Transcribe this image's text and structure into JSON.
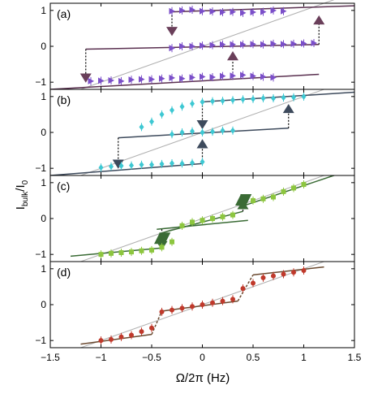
{
  "chart_data": {
    "type": "scatter",
    "xlabel": "Ω/2π (Hz)",
    "ylabel_main": "I",
    "ylabel_sub": "bulk",
    "ylabel_tail": "/I",
    "ylabel_sub2": "0",
    "xlim": [
      -1.5,
      1.5
    ],
    "xticks": [
      -1.5,
      -1,
      -0.5,
      0,
      0.5,
      1,
      1.5
    ],
    "xtick_labels": [
      "−1.5",
      "−1",
      "−0.5",
      "0",
      "0.5",
      "1",
      "1.5"
    ],
    "ylim": [
      -1.2,
      1.2
    ],
    "yticks": [
      -1,
      0,
      1
    ],
    "ytick_labels": [
      "−1",
      "0",
      "1"
    ],
    "grid": false,
    "panels": [
      {
        "label": "(a)",
        "color": "#7b4fc9",
        "line_color": "#5a3050",
        "arrow_color": "#6a3f5a",
        "marker": "tri-right",
        "reference_line": {
          "x": [
            -1.5,
            1.5
          ],
          "y": [
            -1.5,
            1.5
          ],
          "color": "#b0b0b0"
        },
        "branches": [
          {
            "x": [
              -1.5,
              1.15
            ],
            "y": [
              -1.2,
              -0.78
            ]
          },
          {
            "x": [
              -1.15,
              1.15
            ],
            "y": [
              -0.08,
              0.05
            ]
          },
          {
            "x": [
              -0.3,
              1.5
            ],
            "y": [
              0.96,
              1.13
            ]
          }
        ],
        "jumps": [
          {
            "x": -1.15,
            "from": -0.08,
            "to": -0.95,
            "dir": "down"
          },
          {
            "x": -0.3,
            "from": 0.96,
            "to": 0.35,
            "dir": "down"
          },
          {
            "x": 0.3,
            "from": -0.93,
            "to": -0.2,
            "dir": "up"
          },
          {
            "x": 1.15,
            "from": 0.05,
            "to": 0.8,
            "dir": "up"
          }
        ],
        "series": [
          {
            "x": [
              -1.1,
              -1.0,
              -0.9,
              -0.8,
              -0.7,
              -0.6,
              -0.5,
              -0.4,
              -0.3,
              -0.2,
              -0.1,
              0.0,
              0.1,
              0.2,
              0.3,
              0.4,
              0.5,
              0.6,
              0.7
            ],
            "y": [
              -0.97,
              -0.96,
              -0.95,
              -0.97,
              -0.93,
              -0.92,
              -0.92,
              -0.9,
              -0.88,
              -0.9,
              -0.87,
              -0.85,
              -0.86,
              -0.83,
              -0.82,
              -0.8,
              -0.83,
              -0.85,
              -0.87
            ]
          },
          {
            "x": [
              -0.3,
              -0.2,
              -0.1,
              0.0,
              0.1,
              0.2,
              0.3,
              0.4,
              0.5,
              0.6,
              0.7,
              0.8,
              0.9,
              1.0,
              1.1
            ],
            "y": [
              -0.05,
              0.0,
              0.0,
              0.02,
              0.03,
              0.05,
              0.05,
              0.05,
              0.06,
              0.05,
              0.07,
              0.06,
              0.07,
              0.08,
              0.09
            ]
          },
          {
            "x": [
              -0.3,
              -0.2,
              -0.1,
              0.0,
              0.1,
              0.2,
              0.3,
              0.4,
              0.5,
              0.6,
              0.7,
              0.8
            ],
            "y": [
              0.98,
              1.0,
              1.02,
              0.98,
              0.97,
              0.95,
              0.96,
              0.93,
              0.95,
              0.96,
              1.0,
              0.98
            ]
          }
        ]
      },
      {
        "label": "(b)",
        "color": "#3ec8d3",
        "line_color": "#3d4a5c",
        "arrow_color": "#3d4a5c",
        "marker": "diamond",
        "reference_line": {
          "x": [
            -1.5,
            1.5
          ],
          "y": [
            -1.5,
            1.5
          ],
          "color": "#b0b0b0"
        },
        "branches": [
          {
            "x": [
              -1.5,
              0.0
            ],
            "y": [
              -1.2,
              -0.87
            ]
          },
          {
            "x": [
              0.0,
              1.5
            ],
            "y": [
              0.85,
              1.12
            ]
          },
          {
            "x": [
              -0.83,
              0.85
            ],
            "y": [
              -0.15,
              0.12
            ]
          }
        ],
        "jumps": [
          {
            "x": -0.83,
            "from": -0.15,
            "to": -0.95,
            "dir": "down"
          },
          {
            "x": 0.0,
            "from": 0.85,
            "to": 0.15,
            "dir": "down"
          },
          {
            "x": 0.0,
            "from": -0.87,
            "to": -0.25,
            "dir": "up"
          },
          {
            "x": 0.85,
            "from": 0.12,
            "to": 0.73,
            "dir": "up"
          }
        ],
        "series": [
          {
            "x": [
              -1.0,
              -0.9,
              -0.8,
              -0.7,
              -0.6,
              -0.5,
              -0.4,
              -0.3,
              -0.2,
              -0.1,
              0.0
            ],
            "y": [
              -0.98,
              -0.95,
              -0.93,
              -0.92,
              -0.9,
              -0.9,
              -0.88,
              -0.86,
              -0.87,
              -0.85,
              -0.82
            ]
          },
          {
            "x": [
              -0.3,
              -0.2,
              -0.1,
              0.0,
              0.1,
              0.2,
              0.3
            ],
            "y": [
              -0.05,
              0.0,
              0.03,
              0.0,
              0.02,
              0.05,
              0.05
            ]
          },
          {
            "x": [
              -0.6,
              -0.5,
              -0.4,
              -0.3,
              -0.2,
              -0.1,
              0.0,
              0.1,
              0.2,
              0.3,
              0.4,
              0.5,
              0.6,
              0.7,
              0.8,
              0.9,
              1.0
            ],
            "y": [
              0.15,
              0.3,
              0.5,
              0.62,
              0.72,
              0.8,
              0.85,
              0.87,
              0.88,
              0.9,
              0.92,
              0.93,
              0.95,
              0.95,
              0.97,
              0.98,
              1.0
            ]
          }
        ]
      },
      {
        "label": "(c)",
        "color": "#8dc63f",
        "line_color": "#3a6b35",
        "arrow_color": "#3a6b35",
        "marker": "square",
        "reference_line": {
          "x": [
            -1.5,
            1.5
          ],
          "y": [
            -1.5,
            1.5
          ],
          "color": "#b0b0b0"
        },
        "branches": [
          {
            "x": [
              -1.3,
              -0.4
            ],
            "y": [
              -1.05,
              -0.82
            ]
          },
          {
            "x": [
              -0.45,
              0.45
            ],
            "y": [
              -0.3,
              -0.05
            ]
          },
          {
            "x": [
              -0.4,
              0.4
            ],
            "y": [
              -0.4,
              0.2
            ]
          },
          {
            "x": [
              0.4,
              1.35
            ],
            "y": [
              0.35,
              1.25
            ]
          }
        ],
        "jumps": [
          {
            "x": -0.4,
            "from": -0.3,
            "to": -0.82,
            "dir": "down"
          },
          {
            "x": 0.4,
            "from": 0.2,
            "to": 0.45,
            "dir": "up"
          }
        ],
        "big_markers": [
          {
            "x": -0.42,
            "y": -0.55
          },
          {
            "x": -0.37,
            "y": -0.55
          },
          {
            "x": 0.38,
            "y": 0.52
          },
          {
            "x": 0.43,
            "y": 0.52
          }
        ],
        "series": [
          {
            "x": [
              -1.0,
              -0.9,
              -0.8,
              -0.7,
              -0.6,
              -0.5,
              -0.4,
              -0.3,
              -0.2,
              -0.1,
              0.0,
              0.1,
              0.2,
              0.3,
              0.5,
              0.6,
              0.7,
              0.8,
              0.9,
              1.0
            ],
            "y": [
              -1.0,
              -0.97,
              -0.95,
              -0.93,
              -0.9,
              -0.88,
              -0.8,
              -0.65,
              -0.2,
              -0.1,
              -0.05,
              0.0,
              0.05,
              0.1,
              0.5,
              0.55,
              0.6,
              0.75,
              0.85,
              0.95
            ]
          }
        ]
      },
      {
        "label": "(d)",
        "color": "#c0392b",
        "line_color": "#6b4a30",
        "arrow_color": "#6b4a30",
        "marker": "circle",
        "reference_line": {
          "x": [
            -1.5,
            1.5
          ],
          "y": [
            -1.5,
            1.5
          ],
          "color": "#b0b0b0"
        },
        "branches": [
          {
            "x": [
              -1.2,
              -0.5
            ],
            "y": [
              -1.1,
              -0.83
            ]
          },
          {
            "x": [
              -0.4,
              0.35
            ],
            "y": [
              -0.18,
              0.1
            ]
          },
          {
            "x": [
              0.5,
              1.2
            ],
            "y": [
              0.83,
              1.05
            ]
          }
        ],
        "connectors": [
          {
            "x": [
              -0.5,
              -0.4
            ],
            "y": [
              -0.83,
              -0.18
            ]
          },
          {
            "x": [
              0.35,
              0.5
            ],
            "y": [
              0.1,
              0.83
            ]
          }
        ],
        "series": [
          {
            "x": [
              -1.0,
              -0.9,
              -0.8,
              -0.7,
              -0.6,
              -0.5,
              -0.4,
              -0.3,
              -0.2,
              -0.1,
              0.0,
              0.1,
              0.2,
              0.3,
              0.4,
              0.5,
              0.6,
              0.7,
              0.8,
              0.9,
              1.0
            ],
            "y": [
              -1.0,
              -0.97,
              -0.9,
              -0.85,
              -0.75,
              -0.65,
              -0.2,
              -0.15,
              -0.1,
              -0.05,
              0.0,
              0.05,
              0.1,
              0.15,
              0.45,
              0.6,
              0.75,
              0.8,
              0.85,
              0.9,
              0.95
            ]
          }
        ]
      }
    ]
  }
}
